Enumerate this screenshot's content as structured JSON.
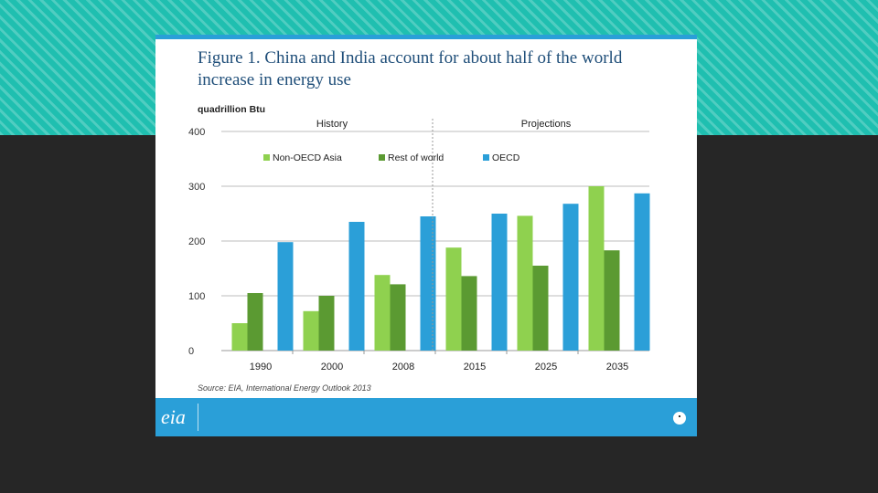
{
  "slide": {
    "title": "Figure 1. China and India account for about half of the world increase in energy use",
    "unit_label": "quadrillion Btu",
    "source": "Source: EIA, International Energy Outlook 2013",
    "logo_text": "eia"
  },
  "colors": {
    "non_oecd_asia": "#8fd14f",
    "rest_of_world": "#5b9a32",
    "oecd": "#2b9fd8",
    "gridline": "#bdbdbd",
    "divider": "#999999"
  },
  "chart_data": {
    "type": "bar",
    "title": "Figure 1. China and India account for about half of the world increase in energy use",
    "ylabel": "quadrillion Btu",
    "xlabel": "",
    "ylim": [
      0,
      400
    ],
    "yticks": [
      0,
      100,
      200,
      300,
      400
    ],
    "categories": [
      "1990",
      "2000",
      "2008",
      "2015",
      "2025",
      "2035"
    ],
    "section_labels": [
      {
        "label": "History",
        "covers": [
          "1990",
          "2000",
          "2008"
        ]
      },
      {
        "label": "Projections",
        "covers": [
          "2015",
          "2025",
          "2035"
        ]
      }
    ],
    "legend_position": "top",
    "grid": true,
    "series": [
      {
        "name": "Non-OECD Asia",
        "color": "#8fd14f",
        "values": [
          50,
          72,
          138,
          188,
          246,
          300
        ]
      },
      {
        "name": "Rest of world",
        "color": "#5b9a32",
        "values": [
          105,
          100,
          121,
          136,
          155,
          183
        ]
      },
      {
        "name": "OECD",
        "color": "#2b9fd8",
        "values": [
          198,
          235,
          245,
          250,
          268,
          287
        ]
      }
    ]
  }
}
